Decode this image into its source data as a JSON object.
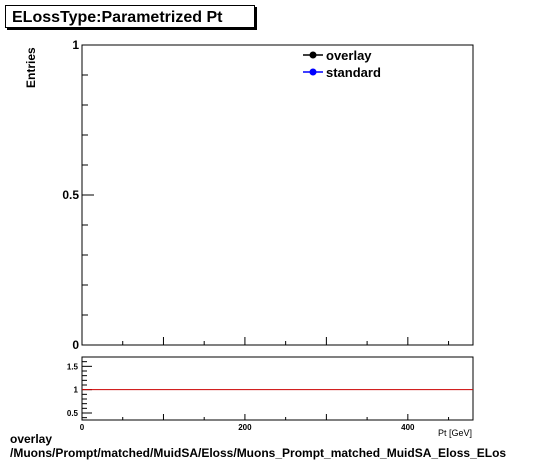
{
  "title": "ELossType:Parametrized Pt",
  "chart_data": [
    {
      "type": "line",
      "ylabel": "Entries",
      "xlabel": "Pt [GeV]",
      "xlim": [
        0,
        480
      ],
      "ylim": [
        0,
        1
      ],
      "y_ticks": [
        "0",
        "0.5",
        "1"
      ],
      "legend_placement": "top-right",
      "series": [
        {
          "name": "overlay",
          "color": "#000000",
          "x": [],
          "y": []
        },
        {
          "name": "standard",
          "color": "#0000ff",
          "x": [],
          "y": []
        }
      ]
    },
    {
      "type": "line",
      "xlim": [
        0,
        480
      ],
      "ylim": [
        0.35,
        1.7
      ],
      "y_ticks": [
        "0.5",
        "1",
        "1.5"
      ],
      "x_ticks": [
        "0",
        "200",
        "400"
      ],
      "reference_line": {
        "y": 1,
        "color": "#cc0000"
      }
    }
  ],
  "footer": {
    "line1": "overlay",
    "line2": "/Muons/Prompt/matched/MuidSA/Eloss/Muons_Prompt_matched_MuidSA_Eloss_ELos"
  }
}
